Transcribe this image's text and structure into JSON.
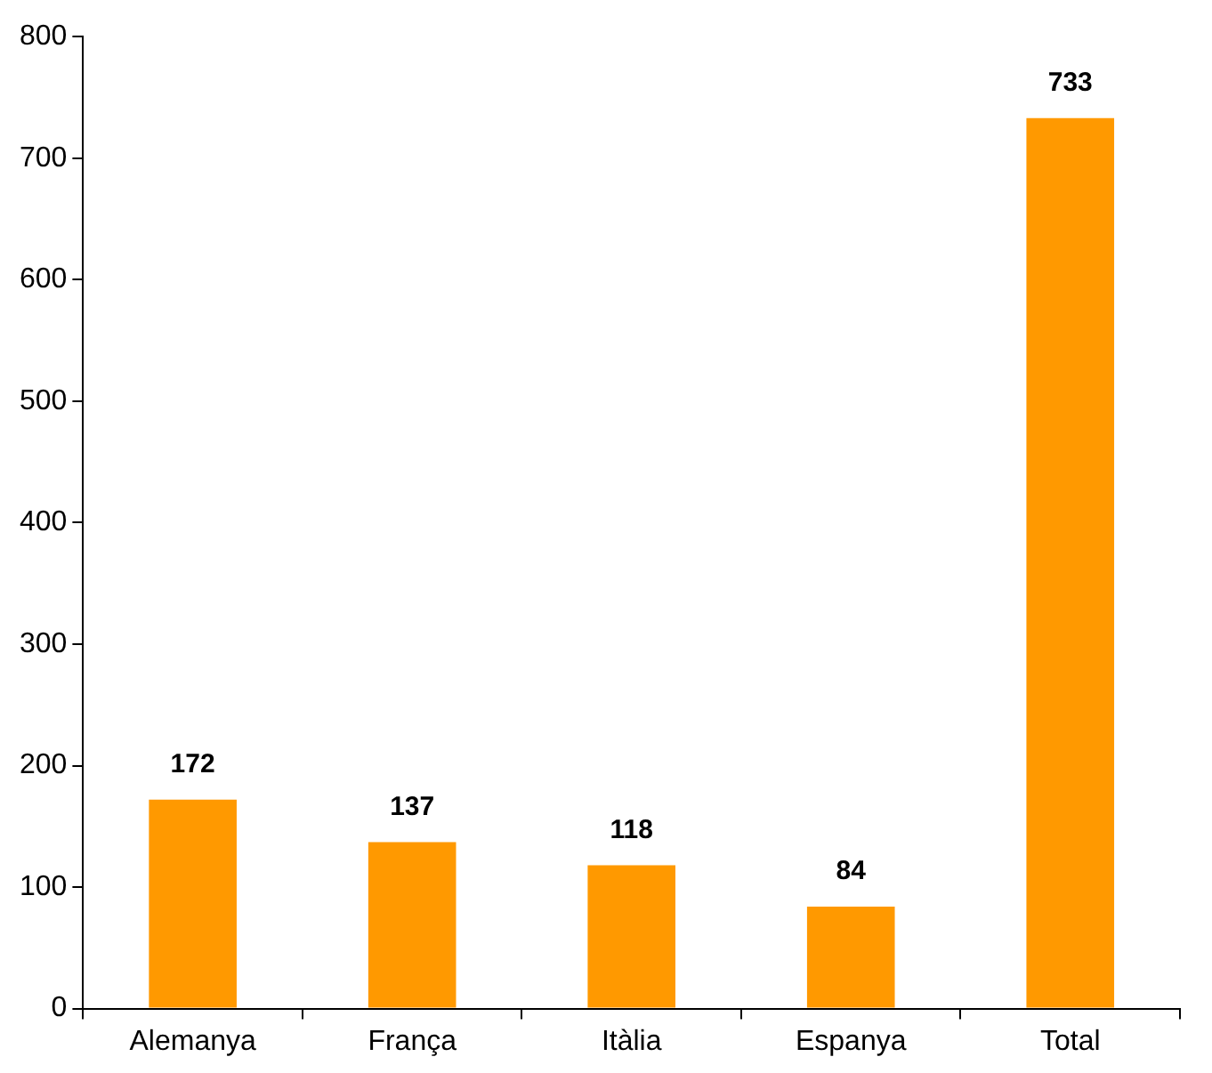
{
  "chart_data": {
    "type": "bar",
    "categories": [
      "Alemanya",
      "França",
      "Itàlia",
      "Espanya",
      "Total"
    ],
    "values": [
      172,
      137,
      118,
      84,
      733
    ],
    "color": "#ff9900",
    "ylim": [
      0,
      800
    ],
    "yticks": [
      0,
      100,
      200,
      300,
      400,
      500,
      600,
      700,
      800
    ],
    "grid": false,
    "legend": false,
    "data_labels": true
  }
}
